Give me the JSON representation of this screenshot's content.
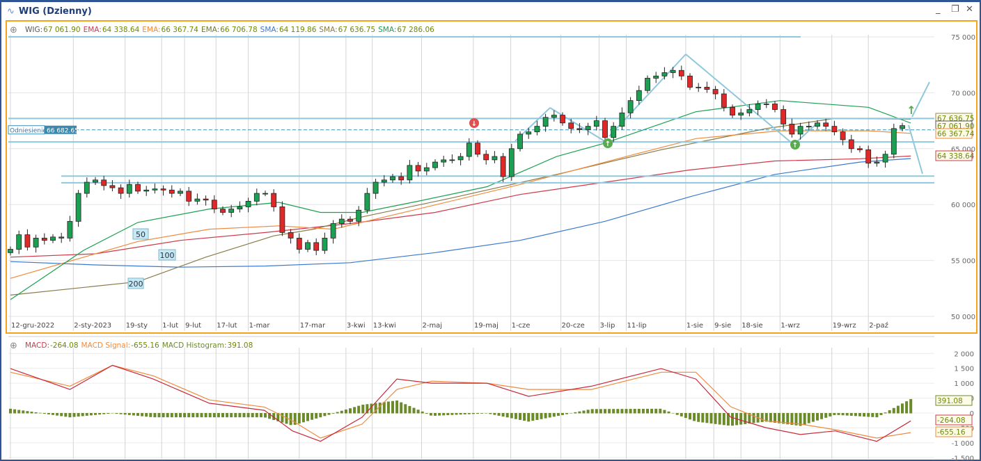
{
  "window": {
    "title": "WIG (Dzienny)",
    "minimize": "_",
    "restore": "❐",
    "close": "✕"
  },
  "legend_main": [
    {
      "name": "WIG:",
      "value": "67 061.90",
      "color": "#555555"
    },
    {
      "name": "EMA:",
      "value": "64 338.64",
      "color": "#d0384a"
    },
    {
      "name": "EMA:",
      "value": "66 367.74",
      "color": "#f08a3c"
    },
    {
      "name": "EMA:",
      "value": "66 706.78",
      "color": "#6b7a2a"
    },
    {
      "name": "SMA:",
      "value": "64 119.86",
      "color": "#3a78d0"
    },
    {
      "name": "SMA:",
      "value": "67 636.75",
      "color": "#8a7a4a"
    },
    {
      "name": "SMA:",
      "value": "67 286.06",
      "color": "#1aa050"
    }
  ],
  "legend_value_color": "#6a8a00",
  "legend_macd": [
    {
      "name": "MACD:",
      "value": "-264.08",
      "color": "#d0384a"
    },
    {
      "name": "MACD Signal:",
      "value": "-655.16",
      "color": "#f08a3c"
    },
    {
      "name": "MACD Histogram:",
      "value": "391.08",
      "color": "#6b8a2a"
    }
  ],
  "reference": {
    "label": "Odniesienie",
    "value": "66 682.65"
  },
  "ma_labels": [
    "50",
    "100",
    "200"
  ],
  "right_tags": [
    {
      "text": "67 636.75",
      "border": "#9a8a50",
      "value": 67636.75
    },
    {
      "text": "67 061.90",
      "border": "#555555",
      "value": 67061.9
    },
    {
      "text": "66 367.74",
      "border": "#f08a3c",
      "value": 66367.74
    },
    {
      "text": "64 338.64",
      "border": "#d0384a",
      "value": 64338.64
    }
  ],
  "macd_tags": [
    {
      "text": "391.08",
      "border": "#6b8a2a",
      "value": 391.08
    },
    {
      "text": "-264.08",
      "border": "#d0384a",
      "value": -264.08
    },
    {
      "text": "-655.16",
      "border": "#f08a3c",
      "value": -655.16
    }
  ],
  "chart_data": [
    {
      "type": "candlestick",
      "title": "WIG (Dzienny)",
      "ylim": [
        50000,
        75000
      ],
      "yticks": [
        "75 000",
        "70 000",
        "65 000",
        "60 000",
        "55 000",
        "50 000"
      ],
      "ytick_values": [
        75000,
        70000,
        65000,
        60000,
        55000,
        50000
      ],
      "xticks": [
        {
          "label": "12-gru-2022",
          "i": 0
        },
        {
          "label": "2-sty-2023",
          "i": 7.4
        },
        {
          "label": "19-sty",
          "i": 13.5
        },
        {
          "label": "1-lut",
          "i": 17.8
        },
        {
          "label": "9-lut",
          "i": 20.5
        },
        {
          "label": "17-lut",
          "i": 24.2
        },
        {
          "label": "1-mar",
          "i": 28
        },
        {
          "label": "17-mar",
          "i": 34
        },
        {
          "label": "3-kwi",
          "i": 39.5
        },
        {
          "label": "13-kwi",
          "i": 42.6
        },
        {
          "label": "2-maj",
          "i": 48.4
        },
        {
          "label": "19-maj",
          "i": 54.5
        },
        {
          "label": "1-cze",
          "i": 58.9
        },
        {
          "label": "20-cze",
          "i": 64.8
        },
        {
          "label": "3-lip",
          "i": 69.3
        },
        {
          "label": "11-lip",
          "i": 72.5
        },
        {
          "label": "1-sie",
          "i": 79.5
        },
        {
          "label": "9-sie",
          "i": 82.8
        },
        {
          "label": "18-sie",
          "i": 86
        },
        {
          "label": "1-wrz",
          "i": 90.6
        },
        {
          "label": "19-wrz",
          "i": 96.7
        },
        {
          "label": "2-paź",
          "i": 101
        }
      ],
      "close": [
        56000,
        57300,
        56200,
        57000,
        56800,
        57100,
        57000,
        58500,
        61000,
        62000,
        62200,
        61700,
        61500,
        61000,
        61800,
        61200,
        61300,
        61400,
        61300,
        61000,
        61200,
        60300,
        60500,
        60400,
        59600,
        59300,
        59600,
        59800,
        60300,
        61000,
        61000,
        59800,
        57500,
        57000,
        56000,
        56600,
        55900,
        57000,
        58300,
        58700,
        58500,
        59500,
        61000,
        62000,
        62200,
        62500,
        62200,
        63500,
        63000,
        63300,
        63800,
        64000,
        64000,
        64300,
        65500,
        64500,
        64000,
        64300,
        62500,
        65000,
        66300,
        66500,
        67000,
        67800,
        68000,
        67300,
        66800,
        66700,
        67000,
        67500,
        66000,
        67000,
        68200,
        69300,
        70200,
        71300,
        71500,
        71800,
        72000,
        71500,
        70500,
        70500,
        70300,
        69900,
        68700,
        68000,
        68200,
        68500,
        69000,
        69000,
        68500,
        67200,
        66300,
        67000,
        67000,
        67300,
        67000,
        66500,
        65800,
        65000,
        64900,
        63700,
        63800,
        64500,
        66800,
        67061.9
      ],
      "series": [
        {
          "name": "SMA 200",
          "color": "#3a78d0",
          "points": [
            [
              0,
              54900
            ],
            [
              10,
              54600
            ],
            [
              20,
              54400
            ],
            [
              30,
              54500
            ],
            [
              40,
              54800
            ],
            [
              50,
              55700
            ],
            [
              60,
              56800
            ],
            [
              70,
              58500
            ],
            [
              80,
              60700
            ],
            [
              90,
              62700
            ],
            [
              100,
              63800
            ],
            [
              106,
              64120
            ]
          ]
        },
        {
          "name": "EMA",
          "color": "#d0384a",
          "points": [
            [
              0,
              55300
            ],
            [
              10,
              55600
            ],
            [
              20,
              56800
            ],
            [
              30,
              57500
            ],
            [
              40,
              58300
            ],
            [
              50,
              59300
            ],
            [
              60,
              60900
            ],
            [
              70,
              62000
            ],
            [
              80,
              63100
            ],
            [
              90,
              63900
            ],
            [
              100,
              64100
            ],
            [
              106,
              64339
            ]
          ]
        },
        {
          "name": "SMA 100",
          "color": "#8a7a4a",
          "points": [
            [
              0,
              51900
            ],
            [
              15,
              53100
            ],
            [
              23,
              55300
            ],
            [
              31,
              57200
            ],
            [
              35.7,
              57800
            ],
            [
              41.4,
              58900
            ],
            [
              52,
              60600
            ],
            [
              64.3,
              62700
            ],
            [
              76.6,
              64900
            ],
            [
              89,
              66800
            ],
            [
              97,
              67700
            ],
            [
              106,
              67637
            ]
          ]
        },
        {
          "name": "EMA",
          "color": "#f08a3c",
          "points": [
            [
              0,
              53400
            ],
            [
              15,
              56700
            ],
            [
              23.4,
              57800
            ],
            [
              31.6,
              58100
            ],
            [
              38,
              57800
            ],
            [
              48,
              59600
            ],
            [
              60,
              61800
            ],
            [
              72.5,
              64300
            ],
            [
              80.7,
              65900
            ],
            [
              90.6,
              66600
            ],
            [
              101,
              66600
            ],
            [
              106,
              66368
            ]
          ]
        },
        {
          "name": "SMA 50",
          "color": "#1aa050",
          "points": [
            [
              0,
              51500
            ],
            [
              8.6,
              55900
            ],
            [
              15,
              58400
            ],
            [
              23.4,
              59600
            ],
            [
              31.6,
              60200
            ],
            [
              36.5,
              59300
            ],
            [
              41.4,
              59300
            ],
            [
              48,
              60300
            ],
            [
              56.1,
              61600
            ],
            [
              64.3,
              64300
            ],
            [
              70,
              65500
            ],
            [
              80.7,
              68300
            ],
            [
              90.6,
              69300
            ],
            [
              101,
              68700
            ],
            [
              106,
              67286
            ]
          ]
        }
      ]
    },
    {
      "type": "macd",
      "ylim": [
        -1500,
        2000
      ],
      "yticks": [
        "2 000",
        "1 500",
        "1 000",
        "500",
        "0",
        "-500",
        "-1 000",
        "-1 500"
      ],
      "ytick_values": [
        2000,
        1500,
        1000,
        500,
        0,
        -500,
        -1000,
        -1500
      ],
      "macd": [
        [
          0,
          1490
        ],
        [
          7,
          790
        ],
        [
          12,
          1600
        ],
        [
          16.8,
          1140
        ],
        [
          23.4,
          330
        ],
        [
          29.9,
          90
        ],
        [
          33.2,
          -600
        ],
        [
          36.5,
          -950
        ],
        [
          41.4,
          -140
        ],
        [
          45.5,
          1140
        ],
        [
          49.6,
          1000
        ],
        [
          56.1,
          1000
        ],
        [
          61,
          560
        ],
        [
          68.4,
          900
        ],
        [
          76.6,
          1490
        ],
        [
          80.7,
          1140
        ],
        [
          84.8,
          -140
        ],
        [
          88.9,
          -490
        ],
        [
          93,
          -720
        ],
        [
          97.1,
          -600
        ],
        [
          102,
          -950
        ],
        [
          106,
          -264
        ]
      ],
      "signal": [
        [
          0,
          1370
        ],
        [
          7,
          900
        ],
        [
          12,
          1600
        ],
        [
          16.8,
          1250
        ],
        [
          23.4,
          440
        ],
        [
          29.9,
          200
        ],
        [
          33.2,
          -260
        ],
        [
          36.5,
          -840
        ],
        [
          41.4,
          -370
        ],
        [
          45.5,
          790
        ],
        [
          49.6,
          1070
        ],
        [
          56.1,
          1000
        ],
        [
          61,
          790
        ],
        [
          68.4,
          790
        ],
        [
          76.6,
          1370
        ],
        [
          80.7,
          1370
        ],
        [
          84.8,
          210
        ],
        [
          88.9,
          -260
        ],
        [
          93,
          -370
        ],
        [
          97.1,
          -560
        ],
        [
          102,
          -840
        ],
        [
          106,
          -655
        ]
      ]
    }
  ]
}
